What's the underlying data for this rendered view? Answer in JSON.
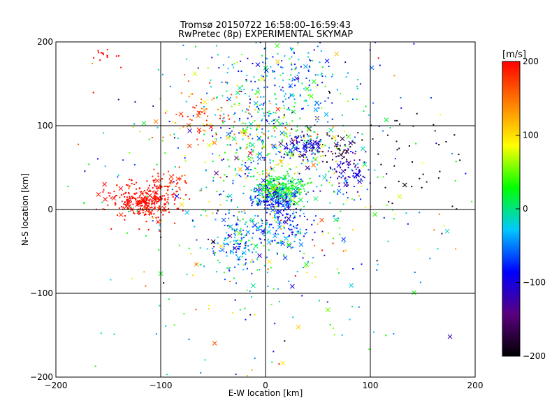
{
  "chart_data": {
    "type": "scatter",
    "title_lines": [
      "Tromsø 20150722 16:58:00–16:59:43",
      "RwPretec (8p) EXPERIMENTAL SKYMAP"
    ],
    "xlabel": "E-W location [km]",
    "ylabel": "N-S location [km]",
    "xlim": [
      -200,
      200
    ],
    "ylim": [
      -200,
      200
    ],
    "xticks": [
      -200,
      -100,
      0,
      100,
      200
    ],
    "yticks": [
      -200,
      -100,
      0,
      100,
      200
    ],
    "xtick_labels": [
      "−200",
      "−100",
      "0",
      "100",
      "200"
    ],
    "ytick_labels": [
      "−200",
      "−100",
      "0",
      "100",
      "200"
    ],
    "grid": true,
    "marker_types": [
      "dot",
      "x"
    ],
    "colorbar": {
      "unit": "[m/s]",
      "range": [
        -200,
        200
      ],
      "ticks": [
        200,
        100,
        0,
        -100,
        -200
      ],
      "tick_labels": [
        "200",
        "100",
        "0",
        "−100",
        "−200"
      ],
      "colormap": [
        "#000000",
        "#5a0080",
        "#0000ff",
        "#00c8ff",
        "#00ff00",
        "#ffff00",
        "#ff8000",
        "#ff0000"
      ]
    },
    "clusters": [
      {
        "cx": -118,
        "cy": 10,
        "sx": 16,
        "sy": 12,
        "n": 300,
        "v": 195,
        "vs": 8
      },
      {
        "cx": -95,
        "cy": 30,
        "sx": 10,
        "sy": 10,
        "n": 50,
        "v": 185,
        "vs": 12
      },
      {
        "cx": 15,
        "cy": 25,
        "sx": 12,
        "sy": 8,
        "n": 280,
        "v": 20,
        "vs": 25
      },
      {
        "cx": 5,
        "cy": 10,
        "sx": 10,
        "sy": 8,
        "n": 160,
        "v": -80,
        "vs": 25
      },
      {
        "cx": 35,
        "cy": 75,
        "sx": 10,
        "sy": 8,
        "n": 100,
        "v": -110,
        "vs": 40
      },
      {
        "cx": 70,
        "cy": 75,
        "sx": 8,
        "sy": 10,
        "n": 40,
        "v": -180,
        "vs": 20
      },
      {
        "cx": 80,
        "cy": 40,
        "sx": 10,
        "sy": 15,
        "n": 80,
        "v": -110,
        "vs": 30
      },
      {
        "cx": 20,
        "cy": 155,
        "sx": 35,
        "sy": 30,
        "n": 220,
        "v": -40,
        "vs": 35
      },
      {
        "cx": 0,
        "cy": 70,
        "sx": 30,
        "sy": 40,
        "n": 350,
        "v": 20,
        "vs": 70
      },
      {
        "cx": -25,
        "cy": -40,
        "sx": 15,
        "sy": 20,
        "n": 160,
        "v": -40,
        "vs": 35
      },
      {
        "cx": 20,
        "cy": -20,
        "sx": 15,
        "sy": 15,
        "n": 120,
        "v": -60,
        "vs": 30
      },
      {
        "cx": -55,
        "cy": 110,
        "sx": 25,
        "sy": 20,
        "n": 70,
        "v": 170,
        "vs": 30
      },
      {
        "cx": 0,
        "cy": 0,
        "sx": 90,
        "sy": 95,
        "n": 500,
        "v": 10,
        "vs": 90
      },
      {
        "cx": 130,
        "cy": 60,
        "sx": 25,
        "sy": 40,
        "n": 40,
        "v": -190,
        "vs": 15
      },
      {
        "cx": -150,
        "cy": 185,
        "sx": 10,
        "sy": 5,
        "n": 15,
        "v": 195,
        "vs": 5
      }
    ]
  }
}
